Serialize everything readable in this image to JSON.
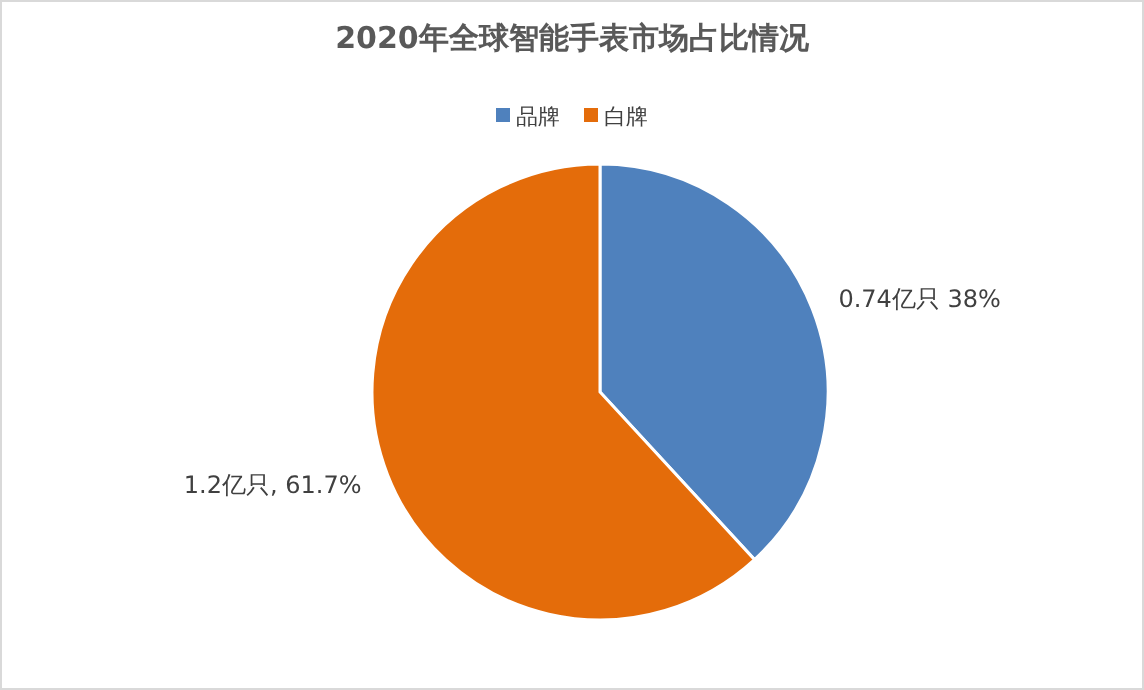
{
  "chart_data": {
    "type": "pie",
    "title": "2020年全球智能手表市场占比情况",
    "categories": [
      "品牌",
      "白牌"
    ],
    "values": [
      0.74,
      1.2
    ],
    "colors": [
      "#4f81bd",
      "#e46c0a"
    ],
    "value_labels": [
      "0.74亿只 38%",
      "1.2亿只, 61.7%"
    ],
    "legend": "top"
  }
}
